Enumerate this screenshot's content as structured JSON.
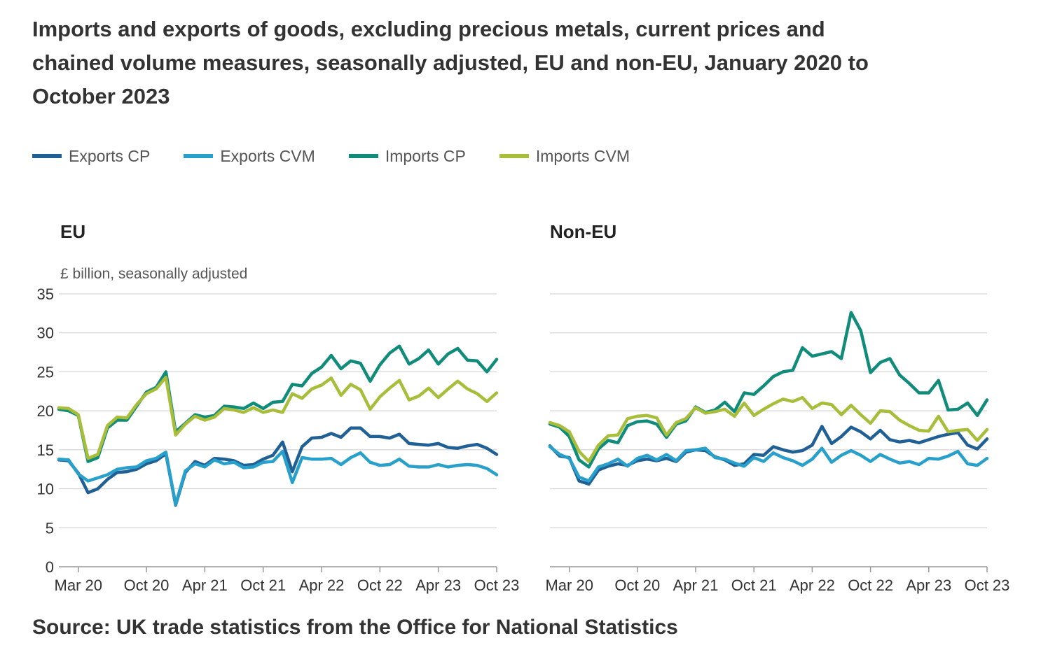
{
  "title": "Imports and exports of goods, excluding precious metals, current prices and chained volume measures, seasonally adjusted, EU and non-EU, January 2020 to October 2023",
  "source": "Source: UK trade statistics from the Office for National Statistics",
  "chart_data": {
    "type": "line",
    "x_start": "2020-01",
    "x_end": "2023-10",
    "ylim": [
      0,
      35
    ],
    "y_ticks": [
      0,
      5,
      10,
      15,
      20,
      25,
      30,
      35
    ],
    "ylabel": "£ billion, seasonally adjusted",
    "x_ticks": [
      {
        "label": "Mar 20",
        "month": "2020-03"
      },
      {
        "label": "Oct 20",
        "month": "2020-10"
      },
      {
        "label": "Apr 21",
        "month": "2021-04"
      },
      {
        "label": "Oct 21",
        "month": "2021-10"
      },
      {
        "label": "Apr 22",
        "month": "2022-04"
      },
      {
        "label": "Oct 22",
        "month": "2022-10"
      },
      {
        "label": "Apr 23",
        "month": "2023-04"
      },
      {
        "label": "Oct 23",
        "month": "2023-10"
      }
    ],
    "grid": "horizontal",
    "legend_position": "top-left",
    "series_styles": [
      {
        "name": "Exports CP",
        "color": "#206095"
      },
      {
        "name": "Exports CVM",
        "color": "#27a0cc"
      },
      {
        "name": "Imports CP",
        "color": "#118c7b"
      },
      {
        "name": "Imports CVM",
        "color": "#a8bd3a"
      }
    ],
    "panels": [
      {
        "title": "EU",
        "series": [
          {
            "name": "Exports CP",
            "values": [
              13.7,
              13.6,
              12.0,
              9.5,
              10.0,
              11.2,
              12.1,
              12.2,
              12.5,
              13.2,
              13.6,
              14.5,
              7.9,
              12.1,
              13.5,
              13.0,
              13.9,
              13.8,
              13.6,
              13.0,
              13.1,
              13.8,
              14.3,
              16.0,
              12.2,
              15.4,
              16.5,
              16.6,
              17.1,
              16.6,
              17.8,
              17.8,
              16.7,
              16.7,
              16.5,
              17.0,
              15.8,
              15.7,
              15.6,
              15.8,
              15.3,
              15.2,
              15.5,
              15.7,
              15.2,
              14.4
            ]
          },
          {
            "name": "Exports CVM",
            "values": [
              13.8,
              13.7,
              11.9,
              11.0,
              11.4,
              11.8,
              12.5,
              12.7,
              12.8,
              13.6,
              13.9,
              14.7,
              8.0,
              12.3,
              13.2,
              12.8,
              13.7,
              13.2,
              13.4,
              12.7,
              12.8,
              13.4,
              13.5,
              14.8,
              10.8,
              14.0,
              13.8,
              13.8,
              13.9,
              13.1,
              14.0,
              14.6,
              13.4,
              13.0,
              13.1,
              13.8,
              12.9,
              12.8,
              12.8,
              13.1,
              12.8,
              13.0,
              13.1,
              13.0,
              12.6,
              11.8
            ]
          },
          {
            "name": "Imports CP",
            "values": [
              20.2,
              20.0,
              19.4,
              13.5,
              14.0,
              17.8,
              18.8,
              18.8,
              20.6,
              22.4,
              23.0,
              25.0,
              17.3,
              18.4,
              19.5,
              19.2,
              19.4,
              20.6,
              20.5,
              20.3,
              21.0,
              20.3,
              21.1,
              21.2,
              23.4,
              23.2,
              24.8,
              25.6,
              27.1,
              25.4,
              26.4,
              26.1,
              23.8,
              25.9,
              27.4,
              28.3,
              26.0,
              26.7,
              27.8,
              26.0,
              27.3,
              28.0,
              26.5,
              26.4,
              25.0,
              26.6
            ]
          },
          {
            "name": "Imports CVM",
            "values": [
              20.4,
              20.3,
              19.5,
              13.9,
              14.4,
              18.1,
              19.2,
              19.1,
              20.8,
              22.2,
              22.8,
              24.3,
              16.9,
              18.3,
              19.3,
              18.8,
              19.2,
              20.3,
              20.1,
              19.8,
              20.4,
              19.8,
              20.1,
              19.8,
              22.2,
              21.6,
              22.8,
              23.3,
              24.2,
              22.0,
              23.4,
              22.7,
              20.2,
              21.8,
              22.9,
              23.9,
              21.4,
              21.9,
              22.9,
              21.7,
              22.8,
              23.8,
              22.8,
              22.2,
              21.2,
              22.3
            ]
          }
        ]
      },
      {
        "title": "Non-EU",
        "series": [
          {
            "name": "Exports CP",
            "values": [
              15.5,
              14.2,
              14.0,
              11.0,
              10.6,
              12.4,
              12.9,
              13.2,
              13.0,
              13.6,
              13.8,
              13.6,
              13.9,
              13.5,
              14.7,
              15.0,
              14.9,
              14.1,
              13.7,
              13.0,
              13.2,
              14.4,
              14.3,
              15.4,
              15.0,
              14.7,
              14.9,
              15.6,
              18.0,
              15.8,
              16.7,
              17.9,
              17.3,
              16.4,
              17.5,
              16.3,
              16.0,
              16.2,
              15.9,
              16.3,
              16.7,
              17.0,
              17.2,
              15.6,
              15.1,
              16.4
            ]
          },
          {
            "name": "Exports CVM",
            "values": [
              15.4,
              14.4,
              13.9,
              11.5,
              11.0,
              12.8,
              13.2,
              13.8,
              12.9,
              13.9,
              14.3,
              13.7,
              14.4,
              13.6,
              14.9,
              15.0,
              15.2,
              14.0,
              13.8,
              13.3,
              12.9,
              14.0,
              13.5,
              14.6,
              14.0,
              13.6,
              13.0,
              13.8,
              15.2,
              13.4,
              14.3,
              14.9,
              14.3,
              13.5,
              14.4,
              13.8,
              13.3,
              13.5,
              13.1,
              13.9,
              13.8,
              14.2,
              14.8,
              13.2,
              13.0,
              13.9
            ]
          },
          {
            "name": "Imports CP",
            "values": [
              18.3,
              17.9,
              16.7,
              13.7,
              12.8,
              15.1,
              16.2,
              15.9,
              18.1,
              18.6,
              18.7,
              18.3,
              16.6,
              18.3,
              18.7,
              20.5,
              19.8,
              20.1,
              21.1,
              19.9,
              22.3,
              22.1,
              23.2,
              24.4,
              25.0,
              25.2,
              28.1,
              27.0,
              27.3,
              27.6,
              26.7,
              32.6,
              30.3,
              24.9,
              26.2,
              26.7,
              24.6,
              23.5,
              22.3,
              22.3,
              23.9,
              20.1,
              20.2,
              21.0,
              19.4,
              21.4
            ]
          },
          {
            "name": "Imports CVM",
            "values": [
              18.5,
              18.1,
              17.3,
              14.8,
              13.5,
              15.6,
              16.8,
              16.9,
              19.0,
              19.3,
              19.4,
              19.1,
              16.9,
              18.5,
              19.0,
              20.4,
              19.7,
              19.9,
              20.2,
              19.3,
              21.0,
              19.4,
              20.2,
              20.9,
              21.5,
              21.2,
              21.7,
              20.3,
              21.0,
              20.8,
              19.5,
              20.7,
              19.5,
              18.4,
              20.0,
              19.9,
              18.8,
              18.1,
              17.5,
              17.4,
              19.3,
              17.3,
              17.5,
              17.6,
              16.2,
              17.6
            ]
          }
        ]
      }
    ]
  }
}
